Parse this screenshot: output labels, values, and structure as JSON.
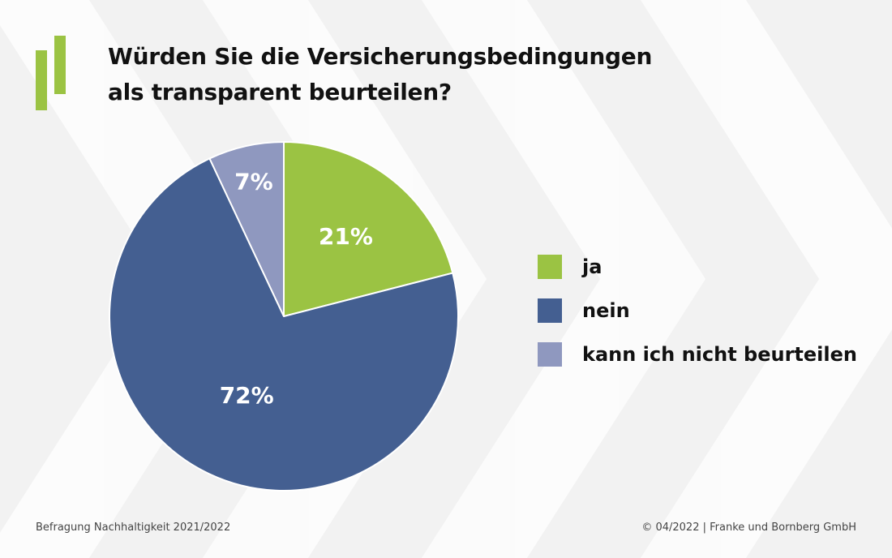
{
  "title_line1": "Würden Sie die Versicherungsbedingungen",
  "title_line2": "als transparent beurteilen?",
  "chart_data": {
    "type": "pie",
    "title": "Würden Sie die Versicherungsbedingungen als transparent beurteilen?",
    "categories": [
      "ja",
      "nein",
      "kann ich nicht beurteilen"
    ],
    "values": [
      21,
      72,
      7
    ],
    "labels": [
      "21%",
      "72%",
      "7%"
    ],
    "colors": [
      "#9bc343",
      "#445f91",
      "#8f98bf"
    ],
    "legend_position": "right",
    "start_angle": "12 o'clock",
    "direction": "clockwise"
  },
  "legend": [
    {
      "label": "ja",
      "color": "#9bc343"
    },
    {
      "label": "nein",
      "color": "#445f91"
    },
    {
      "label": "kann ich nicht beurteilen",
      "color": "#8f98bf"
    }
  ],
  "footer": {
    "source": "Befragung Nachhaltigkeit 2021/2022",
    "copyright": "© 04/2022 | Franke und Bornberg GmbH"
  },
  "brand_color": "#9bc343"
}
